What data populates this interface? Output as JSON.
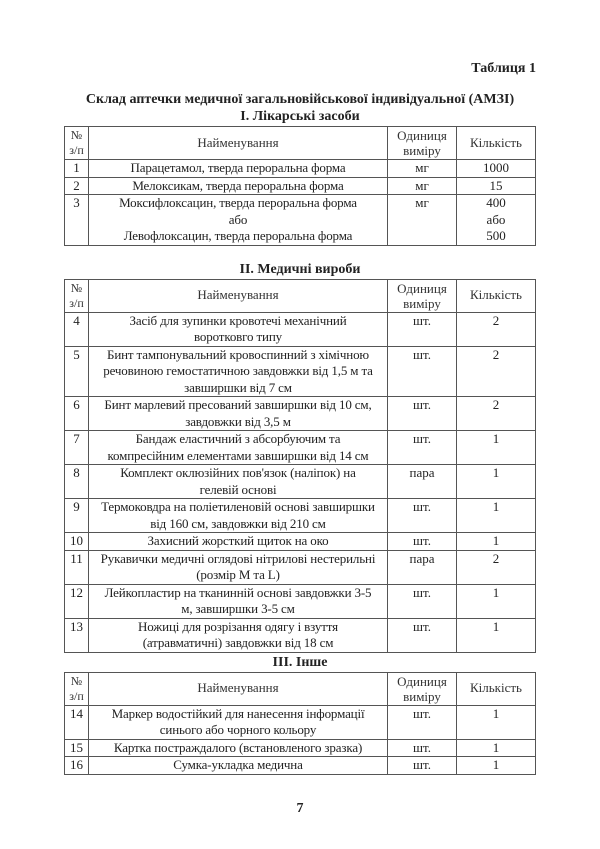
{
  "table_label": "Таблиця 1",
  "title": "Склад аптечки медичної загальновійськової індивідуальної (АМЗІ)",
  "headers": {
    "num": [
      "№",
      "з/п"
    ],
    "name": "Найменування",
    "unit": [
      "Одиниця",
      "виміру"
    ],
    "qty": "Кількість"
  },
  "sections": [
    {
      "title": "І. Лікарські засоби",
      "rows": [
        {
          "num": "1",
          "name": [
            "Парацетамол, тверда пероральна форма"
          ],
          "unit": "мг",
          "qty": [
            "1000"
          ]
        },
        {
          "num": "2",
          "name": [
            "Мелоксикам, тверда пероральна форма"
          ],
          "unit": "мг",
          "qty": [
            "15"
          ]
        },
        {
          "num": "3",
          "name": [
            "Моксифлоксацин, тверда пероральна форма",
            "або",
            "Левофлоксацин, тверда пероральна форма"
          ],
          "unit": "мг",
          "qty": [
            "400",
            "або",
            "500"
          ]
        }
      ]
    },
    {
      "title": "ІІ. Медичні вироби",
      "rows": [
        {
          "num": "4",
          "name": [
            "Засіб для зупинки кровотечі механічний",
            "воротковго типу"
          ],
          "unit": "шт.",
          "qty": [
            "2"
          ]
        },
        {
          "num": "5",
          "name": [
            "Бинт тампонувальний кровоспинний з хімічною",
            "речовиною гемостатичною завдовжки від 1,5 м та",
            "завширшки від 7 см"
          ],
          "unit": "шт.",
          "qty": [
            "2"
          ]
        },
        {
          "num": "6",
          "name": [
            "Бинт марлевий пресований завширшки від 10 см,",
            "завдовжки від 3,5 м"
          ],
          "unit": "шт.",
          "qty": [
            "2"
          ]
        },
        {
          "num": "7",
          "name": [
            "Бандаж еластичний з абсорбуючим та",
            "компресійним елементами завширшки від 14 см"
          ],
          "unit": "шт.",
          "qty": [
            "1"
          ]
        },
        {
          "num": "8",
          "name": [
            "Комплект оклюзійних пов'язок (наліпок) на",
            "гелевій основі"
          ],
          "unit": "пара",
          "qty": [
            "1"
          ]
        },
        {
          "num": "9",
          "name": [
            "Термоковдра на поліетиленовій основі завширшки",
            "від 160 см, завдовжки від 210 см"
          ],
          "unit": "шт.",
          "qty": [
            "1"
          ]
        },
        {
          "num": "10",
          "name": [
            "Захисний жорсткий щиток на око"
          ],
          "unit": "шт.",
          "qty": [
            "1"
          ]
        },
        {
          "num": "11",
          "name": [
            "Рукавички медичні оглядові нітрилові нестерильні",
            "(розмір M та L)"
          ],
          "unit": "пара",
          "qty": [
            "2"
          ]
        },
        {
          "num": "12",
          "name": [
            "Лейкопластир на тканинній основі завдовжки 3-5",
            "м, завширшки 3-5 см"
          ],
          "unit": "шт.",
          "qty": [
            "1"
          ]
        },
        {
          "num": "13",
          "name": [
            "Ножиці для розрізання одягу і взуття",
            "(атравматичні) завдовжки від 18 см"
          ],
          "unit": "шт.",
          "qty": [
            "1"
          ]
        }
      ]
    },
    {
      "title": "ІІІ. Інше",
      "rows": [
        {
          "num": "14",
          "name": [
            "Маркер водостійкий для нанесення інформації",
            "синього або чорного кольору"
          ],
          "unit": "шт.",
          "qty": [
            "1"
          ]
        },
        {
          "num": "15",
          "name": [
            "Картка постраждалого (встановленого зразка)"
          ],
          "unit": "шт.",
          "qty": [
            "1"
          ]
        },
        {
          "num": "16",
          "name": [
            "Сумка-укладка медична"
          ],
          "unit": "шт.",
          "qty": [
            "1"
          ]
        }
      ]
    }
  ],
  "page_number": "7"
}
